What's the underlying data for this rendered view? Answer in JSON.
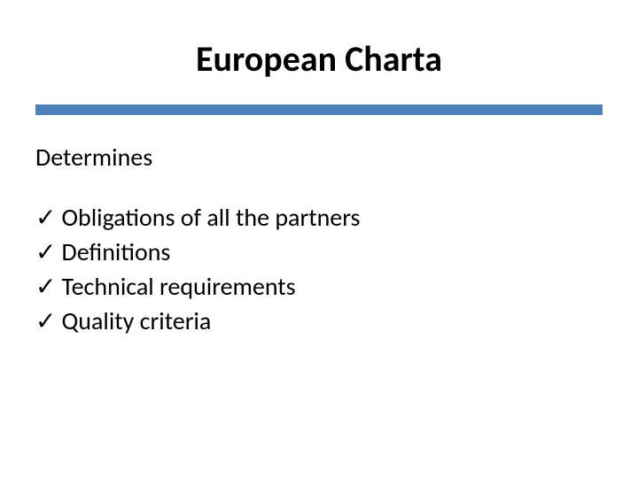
{
  "title": {
    "text": "European Charta",
    "fontsize": 40,
    "fontweight": 700,
    "color": "#000000"
  },
  "divider": {
    "color": "#4f81bd",
    "height": 12
  },
  "subtitle": {
    "text": "Determines",
    "fontsize": 28,
    "color": "#000000"
  },
  "list": {
    "fontsize": 28,
    "color": "#000000",
    "check_glyph": "✓",
    "items": [
      "Obligations of all the partners",
      "Definitions",
      "Technical requirements",
      "Quality criteria"
    ]
  },
  "background_color": "#ffffff"
}
